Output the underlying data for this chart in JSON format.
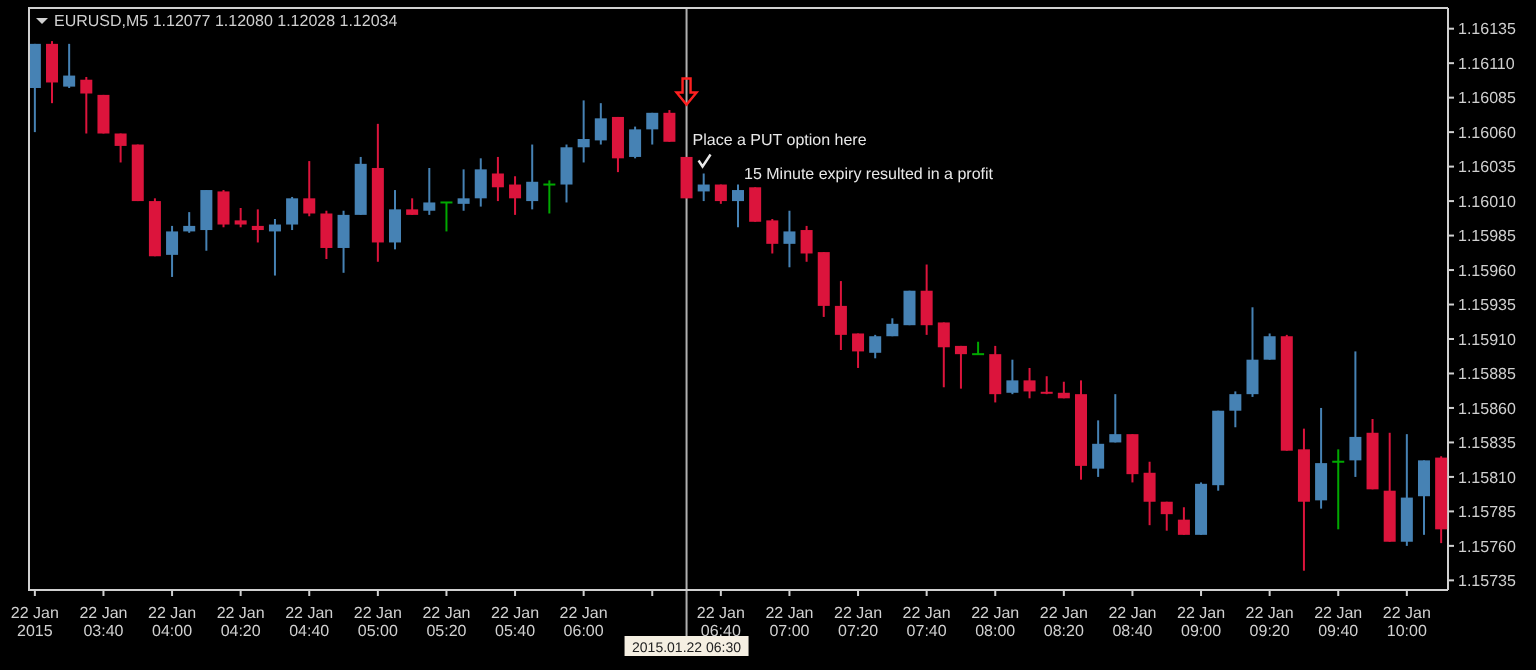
{
  "chart_data": {
    "type": "candlestick",
    "title": "EURUSD,M5  1.12077 1.12080 1.12028 1.12034",
    "x": [
      "2015-01-22T03:20",
      "2015-01-22T03:25",
      "2015-01-22T03:30",
      "2015-01-22T03:35",
      "2015-01-22T03:40",
      "2015-01-22T03:45",
      "2015-01-22T03:50",
      "2015-01-22T03:55",
      "2015-01-22T04:00",
      "2015-01-22T04:05",
      "2015-01-22T04:10",
      "2015-01-22T04:15",
      "2015-01-22T04:20",
      "2015-01-22T04:25",
      "2015-01-22T04:30",
      "2015-01-22T04:35",
      "2015-01-22T04:40",
      "2015-01-22T04:45",
      "2015-01-22T04:50",
      "2015-01-22T04:55",
      "2015-01-22T05:00",
      "2015-01-22T05:05",
      "2015-01-22T05:10",
      "2015-01-22T05:15",
      "2015-01-22T05:20",
      "2015-01-22T05:25",
      "2015-01-22T05:30",
      "2015-01-22T05:35",
      "2015-01-22T05:40",
      "2015-01-22T05:45",
      "2015-01-22T05:50",
      "2015-01-22T05:55",
      "2015-01-22T06:00",
      "2015-01-22T06:05",
      "2015-01-22T06:10",
      "2015-01-22T06:15",
      "2015-01-22T06:20",
      "2015-01-22T06:25",
      "2015-01-22T06:30",
      "2015-01-22T06:35",
      "2015-01-22T06:40",
      "2015-01-22T06:45",
      "2015-01-22T06:50",
      "2015-01-22T06:55",
      "2015-01-22T07:00",
      "2015-01-22T07:05",
      "2015-01-22T07:10",
      "2015-01-22T07:15",
      "2015-01-22T07:20",
      "2015-01-22T07:25",
      "2015-01-22T07:30",
      "2015-01-22T07:35",
      "2015-01-22T07:40",
      "2015-01-22T07:45",
      "2015-01-22T07:50",
      "2015-01-22T07:55",
      "2015-01-22T08:00",
      "2015-01-22T08:05",
      "2015-01-22T08:10",
      "2015-01-22T08:15",
      "2015-01-22T08:20",
      "2015-01-22T08:25",
      "2015-01-22T08:30",
      "2015-01-22T08:35",
      "2015-01-22T08:40",
      "2015-01-22T08:45",
      "2015-01-22T08:50",
      "2015-01-22T08:55",
      "2015-01-22T09:00",
      "2015-01-22T09:05",
      "2015-01-22T09:10",
      "2015-01-22T09:15",
      "2015-01-22T09:20",
      "2015-01-22T09:25",
      "2015-01-22T09:30",
      "2015-01-22T09:35",
      "2015-01-22T09:40",
      "2015-01-22T09:45",
      "2015-01-22T09:50",
      "2015-01-22T09:55",
      "2015-01-22T10:00",
      "2015-01-22T10:05",
      "2015-01-22T10:10"
    ],
    "ohlc": [
      [
        1.16092,
        1.16124,
        1.1606,
        1.16124
      ],
      [
        1.16124,
        1.16126,
        1.16081,
        1.16096
      ],
      [
        1.16093,
        1.16124,
        1.16092,
        1.16101
      ],
      [
        1.16098,
        1.161,
        1.16059,
        1.16088
      ],
      [
        1.16087,
        1.16087,
        1.16059,
        1.16059
      ],
      [
        1.16059,
        1.16059,
        1.16038,
        1.1605
      ],
      [
        1.16051,
        1.16051,
        1.1601,
        1.1601
      ],
      [
        1.1601,
        1.16012,
        1.1597,
        1.1597
      ],
      [
        1.15971,
        1.15992,
        1.15955,
        1.15988
      ],
      [
        1.15988,
        1.16002,
        1.15987,
        1.15992
      ],
      [
        1.15989,
        1.16018,
        1.15974,
        1.16018
      ],
      [
        1.16017,
        1.16018,
        1.15991,
        1.15993
      ],
      [
        1.15996,
        1.16005,
        1.15991,
        1.15993
      ],
      [
        1.15992,
        1.16004,
        1.1598,
        1.15989
      ],
      [
        1.15988,
        1.15997,
        1.15956,
        1.15993
      ],
      [
        1.15993,
        1.16013,
        1.15989,
        1.16012
      ],
      [
        1.16012,
        1.16039,
        1.15999,
        1.16001
      ],
      [
        1.16001,
        1.16003,
        1.15968,
        1.15976
      ],
      [
        1.15976,
        1.16003,
        1.15958,
        1.16
      ],
      [
        1.16,
        1.16042,
        1.16,
        1.16037
      ],
      [
        1.16034,
        1.16066,
        1.15966,
        1.1598
      ],
      [
        1.1598,
        1.16018,
        1.15975,
        1.16004
      ],
      [
        1.16004,
        1.16012,
        1.16,
        1.16
      ],
      [
        1.16003,
        1.16034,
        1.16,
        1.16009
      ],
      [
        1.16009,
        1.16009,
        1.15988,
        1.16009
      ],
      [
        1.16008,
        1.16033,
        1.16003,
        1.16012
      ],
      [
        1.16012,
        1.16041,
        1.16006,
        1.16033
      ],
      [
        1.1603,
        1.16042,
        1.1601,
        1.1602
      ],
      [
        1.16022,
        1.16028,
        1.16,
        1.16012
      ],
      [
        1.1601,
        1.16051,
        1.16004,
        1.16024
      ],
      [
        1.16022,
        1.16025,
        1.16001,
        1.16022
      ],
      [
        1.16022,
        1.16051,
        1.16009,
        1.16049
      ],
      [
        1.16049,
        1.16083,
        1.16038,
        1.16055
      ],
      [
        1.16054,
        1.16081,
        1.16051,
        1.1607
      ],
      [
        1.16071,
        1.16071,
        1.16031,
        1.16041
      ],
      [
        1.16042,
        1.16064,
        1.16041,
        1.16062
      ],
      [
        1.16062,
        1.16074,
        1.16051,
        1.16074
      ],
      [
        1.16074,
        1.16076,
        1.16053,
        1.16053
      ],
      [
        1.16042,
        1.16042,
        1.16012,
        1.16012
      ],
      [
        1.16017,
        1.1603,
        1.1601,
        1.16022
      ],
      [
        1.16022,
        1.16022,
        1.16008,
        1.1601
      ],
      [
        1.1601,
        1.16022,
        1.15991,
        1.16018
      ],
      [
        1.1602,
        1.1602,
        1.15995,
        1.15995
      ],
      [
        1.15996,
        1.15997,
        1.15972,
        1.15979
      ],
      [
        1.15979,
        1.16003,
        1.15962,
        1.15988
      ],
      [
        1.15989,
        1.15992,
        1.15966,
        1.15972
      ],
      [
        1.15973,
        1.15973,
        1.15926,
        1.15934
      ],
      [
        1.15934,
        1.15952,
        1.15902,
        1.15913
      ],
      [
        1.15914,
        1.15914,
        1.15889,
        1.15901
      ],
      [
        1.159,
        1.15913,
        1.15896,
        1.15912
      ],
      [
        1.15912,
        1.15925,
        1.15912,
        1.15921
      ],
      [
        1.1592,
        1.15945,
        1.1592,
        1.15945
      ],
      [
        1.15945,
        1.15964,
        1.15913,
        1.1592
      ],
      [
        1.15922,
        1.15922,
        1.15875,
        1.15904
      ],
      [
        1.15905,
        1.15905,
        1.15874,
        1.15899
      ],
      [
        1.15899,
        1.15908,
        1.15899,
        1.15899
      ],
      [
        1.15899,
        1.15905,
        1.15864,
        1.1587
      ],
      [
        1.15871,
        1.15895,
        1.1587,
        1.1588
      ],
      [
        1.1588,
        1.15889,
        1.15867,
        1.15872
      ],
      [
        1.15871,
        1.15883,
        1.1587,
        1.1587
      ],
      [
        1.15871,
        1.15879,
        1.15867,
        1.15867
      ],
      [
        1.1587,
        1.1588,
        1.15808,
        1.15818
      ],
      [
        1.15816,
        1.15851,
        1.1581,
        1.15834
      ],
      [
        1.15835,
        1.1587,
        1.15835,
        1.15841
      ],
      [
        1.15841,
        1.15841,
        1.15806,
        1.15812
      ],
      [
        1.15813,
        1.15821,
        1.15775,
        1.15792
      ],
      [
        1.15792,
        1.15792,
        1.15771,
        1.15783
      ],
      [
        1.15779,
        1.15788,
        1.15768,
        1.15768
      ],
      [
        1.15768,
        1.15806,
        1.15768,
        1.15805
      ],
      [
        1.15804,
        1.15858,
        1.158,
        1.15858
      ],
      [
        1.15858,
        1.15872,
        1.15846,
        1.1587
      ],
      [
        1.1587,
        1.15933,
        1.15868,
        1.15895
      ],
      [
        1.15895,
        1.15914,
        1.15895,
        1.15912
      ],
      [
        1.15912,
        1.15913,
        1.15829,
        1.15829
      ],
      [
        1.1583,
        1.15845,
        1.15742,
        1.15792
      ],
      [
        1.15793,
        1.1586,
        1.15787,
        1.1582
      ],
      [
        1.15821,
        1.1583,
        1.15772,
        1.15821
      ],
      [
        1.15822,
        1.15901,
        1.1581,
        1.15839
      ],
      [
        1.15842,
        1.15852,
        1.15801,
        1.15801
      ],
      [
        1.158,
        1.15842,
        1.15763,
        1.15763
      ],
      [
        1.15763,
        1.15841,
        1.1576,
        1.15795
      ],
      [
        1.15796,
        1.15822,
        1.15768,
        1.15822
      ],
      [
        1.15824,
        1.15825,
        1.15762,
        1.15772
      ]
    ],
    "colors": [
      "#4682b4",
      "#dc143c",
      "#4682b4",
      "#dc143c",
      "#dc143c",
      "#dc143c",
      "#dc143c",
      "#dc143c",
      "#4682b4",
      "#4682b4",
      "#4682b4",
      "#dc143c",
      "#dc143c",
      "#dc143c",
      "#4682b4",
      "#4682b4",
      "#dc143c",
      "#dc143c",
      "#4682b4",
      "#4682b4",
      "#dc143c",
      "#4682b4",
      "#dc143c",
      "#4682b4",
      "#00a800",
      "#4682b4",
      "#4682b4",
      "#dc143c",
      "#dc143c",
      "#4682b4",
      "#00a800",
      "#4682b4",
      "#4682b4",
      "#4682b4",
      "#dc143c",
      "#4682b4",
      "#4682b4",
      "#dc143c",
      "#dc143c",
      "#4682b4",
      "#dc143c",
      "#4682b4",
      "#dc143c",
      "#dc143c",
      "#4682b4",
      "#dc143c",
      "#dc143c",
      "#dc143c",
      "#dc143c",
      "#4682b4",
      "#4682b4",
      "#4682b4",
      "#dc143c",
      "#dc143c",
      "#dc143c",
      "#00a800",
      "#dc143c",
      "#4682b4",
      "#dc143c",
      "#dc143c",
      "#dc143c",
      "#dc143c",
      "#4682b4",
      "#4682b4",
      "#dc143c",
      "#dc143c",
      "#dc143c",
      "#dc143c",
      "#4682b4",
      "#4682b4",
      "#4682b4",
      "#4682b4",
      "#4682b4",
      "#dc143c",
      "#dc143c",
      "#4682b4",
      "#00a800",
      "#4682b4",
      "#dc143c",
      "#dc143c",
      "#4682b4",
      "#4682b4",
      "#dc143c"
    ],
    "xlim": [
      "2015-01-22T03:18",
      "2015-01-22T10:12"
    ],
    "xticks": [
      {
        "value": "2015-01-22T03:20",
        "label": "22 Jan 2015"
      },
      {
        "value": "2015-01-22T03:40",
        "label": "22 Jan 03:40"
      },
      {
        "value": "2015-01-22T04:00",
        "label": "22 Jan 04:00"
      },
      {
        "value": "2015-01-22T04:20",
        "label": "22 Jan 04:20"
      },
      {
        "value": "2015-01-22T04:40",
        "label": "22 Jan 04:40"
      },
      {
        "value": "2015-01-22T05:00",
        "label": "22 Jan 05:00"
      },
      {
        "value": "2015-01-22T05:20",
        "label": "22 Jan 05:20"
      },
      {
        "value": "2015-01-22T05:40",
        "label": "22 Jan 05:40"
      },
      {
        "value": "2015-01-22T06:00",
        "label": "22 Jan 06:00"
      },
      {
        "value": "2015-01-22T06:20",
        "label": null
      },
      {
        "value": "2015-01-22T06:40",
        "label": "22 Jan 06:40"
      },
      {
        "value": "2015-01-22T07:00",
        "label": "22 Jan 07:00"
      },
      {
        "value": "2015-01-22T07:20",
        "label": "22 Jan 07:20"
      },
      {
        "value": "2015-01-22T07:40",
        "label": "22 Jan 07:40"
      },
      {
        "value": "2015-01-22T08:00",
        "label": "22 Jan 08:00"
      },
      {
        "value": "2015-01-22T08:20",
        "label": "22 Jan 08:20"
      },
      {
        "value": "2015-01-22T08:40",
        "label": "22 Jan 08:40"
      },
      {
        "value": "2015-01-22T09:00",
        "label": "22 Jan 09:00"
      },
      {
        "value": "2015-01-22T09:20",
        "label": "22 Jan 09:20"
      },
      {
        "value": "2015-01-22T09:40",
        "label": "22 Jan 09:40"
      },
      {
        "value": "2015-01-22T10:00",
        "label": "22 Jan 10:00"
      }
    ],
    "ylim": [
      1.15728,
      1.1615
    ],
    "yticks": [
      1.15735,
      {
        "value": 1.1576,
        "label": "1.15760"
      },
      1.15785,
      {
        "value": 1.1581,
        "label": "1.15810"
      },
      1.15835,
      {
        "value": 1.1586,
        "label": "1.15860"
      },
      1.15885,
      {
        "value": 1.1591,
        "label": "1.15910"
      },
      1.15935,
      {
        "value": 1.1596,
        "label": "1.15960"
      },
      1.15985,
      {
        "value": 1.1601,
        "label": "1.16010"
      },
      1.16035,
      {
        "value": 1.1606,
        "label": "1.16060"
      },
      1.16085,
      {
        "value": 1.1611,
        "label": "1.16110"
      },
      1.16135
    ],
    "ref_lines": [
      {
        "axis": "x",
        "value": "2015-01-22T06:30",
        "label": "2015.01.22 06:30",
        "color": "#b0b0b0"
      }
    ],
    "annotations": [
      {
        "text": "Place a PUT option here",
        "x": "2015-01-22T06:30",
        "y": 1.16051
      },
      {
        "text": "15 Minute expiry resulted in a profit",
        "x": "2015-01-22T06:45",
        "y": 1.16026
      }
    ]
  }
}
